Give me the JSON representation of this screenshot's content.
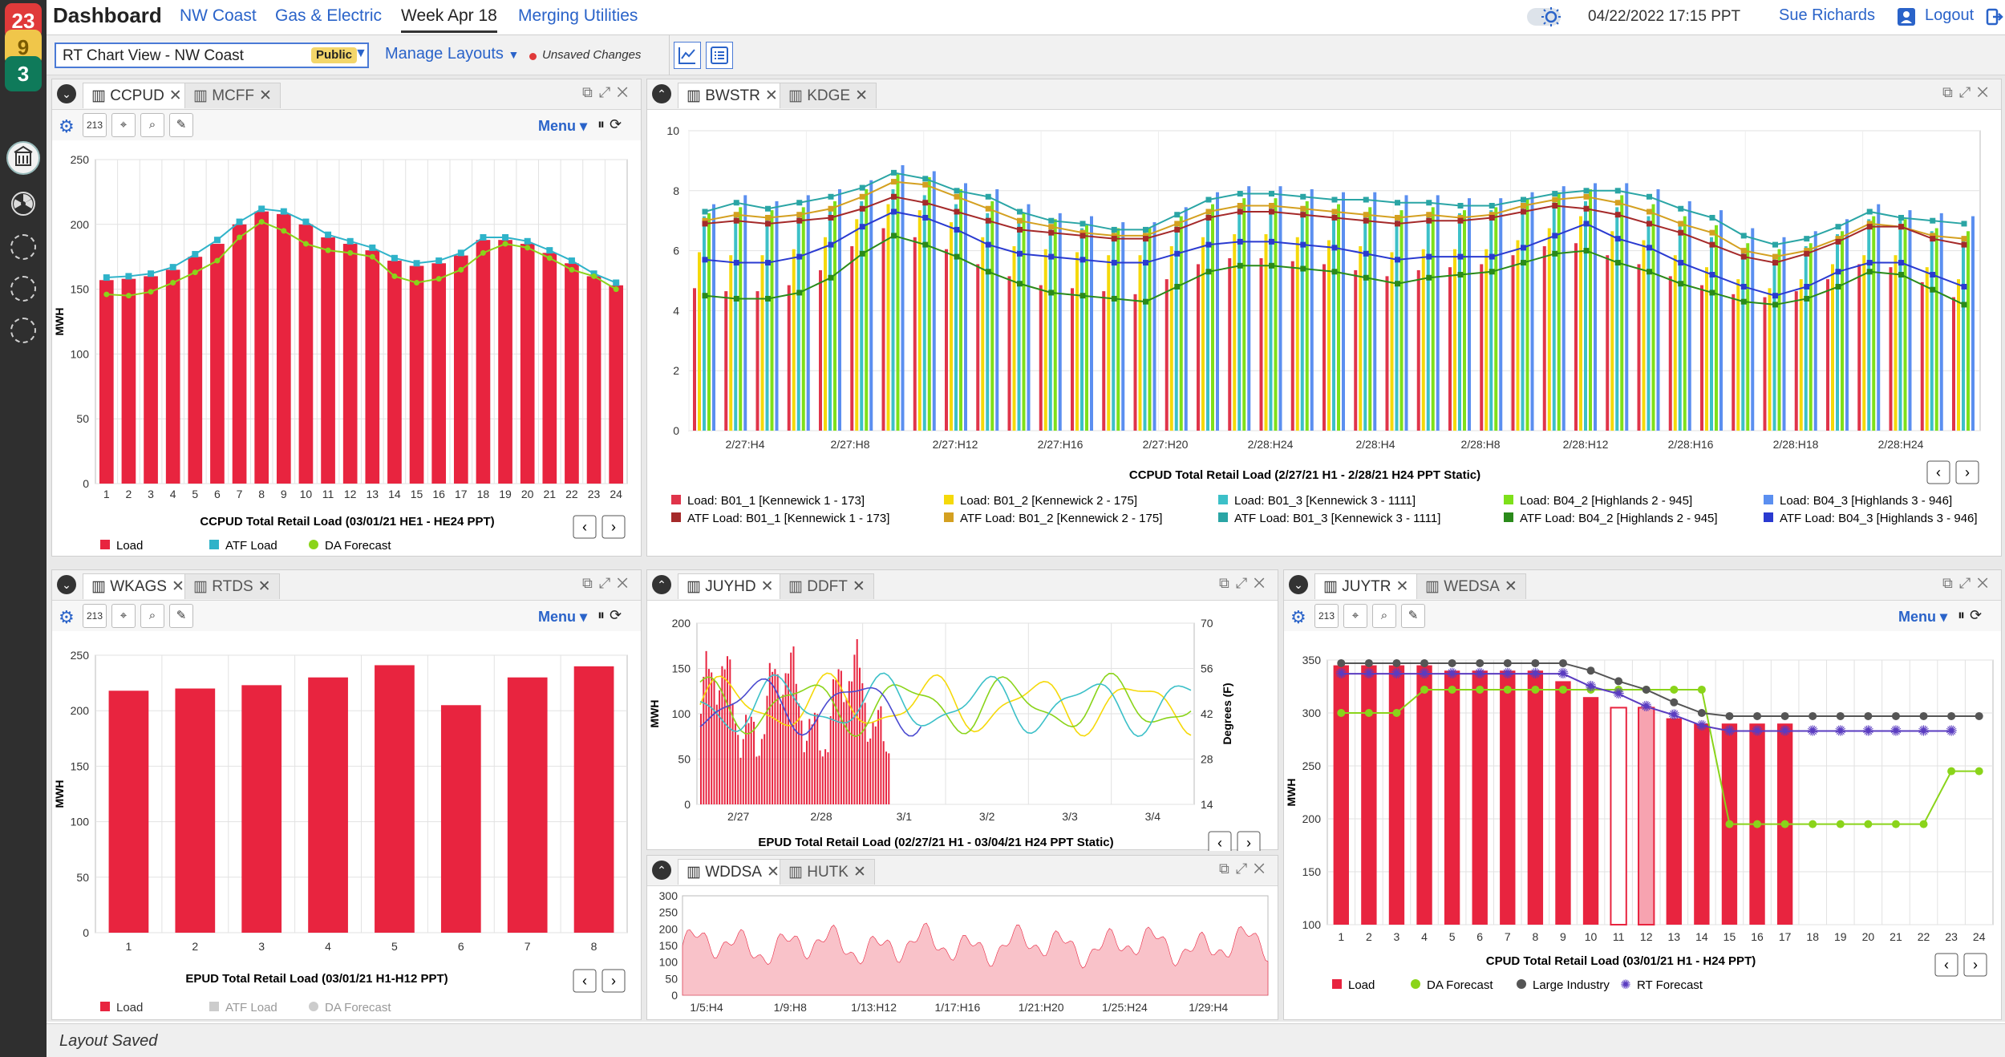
{
  "header": {
    "title": "Dashboard",
    "tabs": [
      "NW Coast",
      "Gas & Electric",
      "Week Apr 18",
      "Merging Utilities"
    ],
    "active_tab": 2,
    "datetime": "04/22/2022  17:15 PPT",
    "user": "Sue Richards",
    "logout": "Logout"
  },
  "rail": {
    "badges": [
      {
        "count": "23",
        "color": "#e03a3a"
      },
      {
        "count": "9",
        "color": "#f0c64a"
      },
      {
        "count": "3",
        "color": "#0f7a5a"
      }
    ]
  },
  "toolbar": {
    "view_name": "RT Chart View - NW Coast",
    "view_badge": "Public",
    "manage_layouts": "Manage Layouts",
    "unsaved": "Unsaved Changes"
  },
  "status": {
    "text": "Layout Saved"
  },
  "panels": {
    "p1": {
      "tabs": [
        "CCPUD",
        "MCFF"
      ],
      "counter": "213",
      "menu": "Menu",
      "title": "CCPUD Total Retail Load (03/01/21 HE1 - HE24  PPT)",
      "legend": [
        "Load",
        "ATF Load",
        "DA Forecast"
      ],
      "ylabel": "MWH"
    },
    "p2": {
      "tabs": [
        "BWSTR",
        "KDGE"
      ],
      "title": "CCPUD Total Retail Load  (2/27/21 H1 - 2/28/21 H24 PPT Static)",
      "legend": [
        "Load: B01_1 [Kennewick 1 - 173]",
        "Load: B01_2 [Kennewick 2 - 175]",
        "Load: B01_3 [Kennewick 3 - 1111]",
        "Load: B04_2 [Highlands 2 - 945]",
        "Load: B04_3 [Highlands 3 - 946]",
        "ATF Load: B01_1 [Kennewick 1 - 173]",
        "ATF Load: B01_2 [Kennewick 2 - 175]",
        "ATF Load: B01_3 [Kennewick 3 - 1111]",
        "ATF Load: B04_2 [Highlands 2 - 945]",
        "ATF Load: B04_3 [Highlands 3 - 946]"
      ],
      "legend_colors": [
        "#e0344a",
        "#f5d90a",
        "#3cc0c8",
        "#7ee01a",
        "#5b8ff0",
        "#a52a2a",
        "#d4a020",
        "#2aa5a5",
        "#2a8a1a",
        "#2a3ad0"
      ]
    },
    "p3": {
      "tabs": [
        "WKAGS",
        "RTDS"
      ],
      "counter": "213",
      "menu": "Menu",
      "title": "EPUD Total Retail Load  (03/01/21 H1-H12 PPT)",
      "legend": [
        "Load",
        "ATF Load",
        "DA Forecast"
      ],
      "ylabel": "MWH"
    },
    "p4": {
      "tabs": [
        "JUYHD",
        "DDFT"
      ],
      "title": "EPUD Total Retail Load  (02/27/21 H1 - 03/04/21 H24 PPT Static)",
      "ylabel": "MWH",
      "ylabel2": "Degrees (F)"
    },
    "p5": {
      "tabs": [
        "WDDSA",
        "HUTK"
      ]
    },
    "p6": {
      "tabs": [
        "JUYTR",
        "WEDSA"
      ],
      "counter": "213",
      "menu": "Menu",
      "title": "CPUD Total Retail Load (03/01/21 H1 - H24 PPT)",
      "legend": [
        "Load",
        "DA Forecast",
        "Large Industry",
        "RT Forecast"
      ],
      "ylabel": "MWH"
    }
  },
  "chart_data": [
    {
      "id": "ccpud",
      "type": "bar",
      "title": "CCPUD Total Retail Load (03/01/21 HE1 - HE24  PPT)",
      "ylabel": "MWH",
      "ylim": [
        0,
        250
      ],
      "categories": [
        "1",
        "2",
        "3",
        "4",
        "5",
        "6",
        "7",
        "8",
        "9",
        "10",
        "11",
        "12",
        "13",
        "14",
        "15",
        "16",
        "17",
        "18",
        "19",
        "20",
        "21",
        "22",
        "23",
        "24"
      ],
      "series": [
        {
          "name": "Load",
          "type": "bar",
          "color": "#e8243f",
          "values": [
            157,
            158,
            160,
            165,
            175,
            185,
            200,
            210,
            208,
            200,
            190,
            185,
            180,
            172,
            168,
            170,
            176,
            188,
            188,
            185,
            178,
            170,
            160,
            153
          ]
        },
        {
          "name": "ATF Load",
          "type": "line",
          "color": "#2fb3c9",
          "values": [
            159,
            160,
            162,
            167,
            177,
            188,
            202,
            212,
            210,
            202,
            192,
            187,
            182,
            174,
            170,
            172,
            178,
            190,
            190,
            187,
            180,
            172,
            162,
            155
          ]
        },
        {
          "name": "DA Forecast",
          "type": "line",
          "color": "#8ad41a",
          "values": [
            146,
            145,
            148,
            155,
            163,
            172,
            190,
            202,
            195,
            185,
            180,
            178,
            175,
            160,
            155,
            158,
            165,
            178,
            185,
            182,
            174,
            165,
            160,
            150
          ]
        }
      ]
    },
    {
      "id": "bwstr",
      "type": "bar",
      "title": "CCPUD Total Retail Load  (2/27/21 H1 - 2/28/21 H24 PPT Static)",
      "ylim": [
        0,
        10
      ],
      "x_ticks": [
        "2/27:H4",
        "2/27:H8",
        "2/27:H12",
        "2/27:H16",
        "2/27:H20",
        "2/28:H24",
        "2/28:H4",
        "2/28:H8",
        "2/28:H12",
        "2/28:H16",
        "2/28:H18",
        "2/28:H24"
      ],
      "series": [
        {
          "name": "ATF Load: B01_3 [Kennewick 3 - 1111]",
          "values": [
            7.3,
            7.6,
            7.4,
            7.6,
            7.8,
            8.1,
            8.6,
            8.4,
            8.0,
            7.8,
            7.3,
            7.0,
            6.9,
            6.7,
            6.7,
            7.2,
            7.7,
            7.9,
            7.9,
            7.8,
            7.7,
            7.7,
            7.6,
            7.6,
            7.5,
            7.5,
            7.7,
            7.9,
            8.0,
            8.0,
            7.8,
            7.4,
            7.1,
            6.5,
            6.2,
            6.4,
            6.8,
            7.3,
            7.1,
            7.0,
            6.9
          ]
        },
        {
          "name": "ATF Load: B01_2 [Kennewick 2 - 175]",
          "values": [
            7.0,
            7.2,
            7.1,
            7.2,
            7.4,
            7.8,
            8.3,
            8.2,
            7.8,
            7.4,
            7.0,
            6.8,
            6.6,
            6.5,
            6.5,
            6.9,
            7.3,
            7.5,
            7.5,
            7.4,
            7.3,
            7.2,
            7.1,
            7.2,
            7.1,
            7.2,
            7.5,
            7.7,
            7.8,
            7.6,
            7.3,
            6.9,
            6.6,
            6.0,
            5.8,
            6.0,
            6.4,
            6.9,
            6.8,
            6.5,
            6.4
          ]
        },
        {
          "name": "ATF Load: B01_1 [Kennewick 1 - 173]",
          "values": [
            6.9,
            7.0,
            6.9,
            7.0,
            7.1,
            7.4,
            7.8,
            7.6,
            7.3,
            7.0,
            6.7,
            6.6,
            6.5,
            6.4,
            6.4,
            6.7,
            7.1,
            7.3,
            7.3,
            7.2,
            7.1,
            7.0,
            6.9,
            7.0,
            7.0,
            7.1,
            7.3,
            7.5,
            7.4,
            7.2,
            6.9,
            6.6,
            6.2,
            5.8,
            5.6,
            5.9,
            6.3,
            6.8,
            6.8,
            6.4,
            6.2
          ]
        },
        {
          "name": "ATF Load: B04_3 [Highlands 3 - 946]",
          "values": [
            5.7,
            5.6,
            5.6,
            5.8,
            6.2,
            6.8,
            7.3,
            7.1,
            6.7,
            6.2,
            5.9,
            5.8,
            5.7,
            5.6,
            5.6,
            5.9,
            6.2,
            6.3,
            6.3,
            6.2,
            6.1,
            5.9,
            5.7,
            5.8,
            5.8,
            5.8,
            6.1,
            6.5,
            6.9,
            6.4,
            6.1,
            5.6,
            5.2,
            4.8,
            4.5,
            4.8,
            5.3,
            5.6,
            5.6,
            5.2,
            4.8
          ]
        },
        {
          "name": "ATF Load: B04_2 [Highlands 2 - 945]",
          "values": [
            4.5,
            4.4,
            4.4,
            4.6,
            5.1,
            5.9,
            6.5,
            6.2,
            5.8,
            5.3,
            4.9,
            4.6,
            4.5,
            4.4,
            4.3,
            4.8,
            5.3,
            5.5,
            5.5,
            5.4,
            5.3,
            5.1,
            4.9,
            5.1,
            5.2,
            5.3,
            5.6,
            5.9,
            6.0,
            5.6,
            5.3,
            4.9,
            4.6,
            4.3,
            4.2,
            4.4,
            4.8,
            5.3,
            5.2,
            4.7,
            4.2
          ]
        }
      ]
    },
    {
      "id": "epud12",
      "type": "bar",
      "title": "EPUD Total Retail Load  (03/01/21 H1-H12 PPT)",
      "ylabel": "MWH",
      "ylim": [
        0,
        250
      ],
      "categories": [
        "1",
        "2",
        "3",
        "4",
        "5",
        "6",
        "7",
        "8"
      ],
      "series": [
        {
          "name": "Load",
          "values": [
            218,
            220,
            223,
            230,
            241,
            205,
            230,
            240
          ]
        }
      ]
    },
    {
      "id": "epud_static",
      "type": "bar",
      "title": "EPUD Total Retail Load  (02/27/21 H1 - 03/04/21 H24 PPT Static)",
      "ylabel": "MWH",
      "ylabel_right": "Degrees (F)",
      "ylim": [
        0,
        200
      ],
      "ylim_right": [
        14,
        70
      ],
      "x_ticks": [
        "2/27",
        "2/28",
        "3/1",
        "3/2",
        "3/3",
        "3/4"
      ]
    },
    {
      "id": "wddsa",
      "type": "area",
      "ylim": [
        0,
        300
      ],
      "y_ticks": [
        0,
        50,
        100,
        150,
        200,
        250,
        300
      ],
      "x_ticks": [
        "1/5:H4",
        "1/9:H8",
        "1/13:H12",
        "1/17:H16",
        "1/21:H20",
        "1/25:H24",
        "1/29:H4"
      ]
    },
    {
      "id": "cpud",
      "type": "bar",
      "title": "CPUD Total Retail Load (03/01/21 H1 - H24 PPT)",
      "ylabel": "MWH",
      "ylim": [
        100,
        350
      ],
      "categories": [
        "1",
        "2",
        "3",
        "4",
        "5",
        "6",
        "7",
        "8",
        "9",
        "10",
        "11",
        "12",
        "13",
        "14",
        "15",
        "16",
        "17",
        "18",
        "19",
        "20",
        "21",
        "22",
        "23",
        "24"
      ],
      "series": [
        {
          "name": "Load",
          "type": "bar",
          "values": [
            345,
            345,
            345,
            345,
            340,
            340,
            340,
            340,
            330,
            315,
            305,
            305,
            295,
            290,
            290,
            290,
            290,
            null,
            null,
            null,
            null,
            null,
            null,
            null
          ]
        },
        {
          "name": "DA Forecast",
          "type": "line",
          "color": "#8ad41a",
          "values": [
            300,
            300,
            300,
            322,
            322,
            322,
            322,
            322,
            322,
            322,
            322,
            322,
            322,
            322,
            195,
            195,
            195,
            195,
            195,
            195,
            195,
            195,
            245,
            245
          ]
        },
        {
          "name": "Large Industry",
          "type": "line",
          "color": "#555555",
          "values": [
            347,
            347,
            347,
            347,
            347,
            347,
            347,
            347,
            347,
            340,
            330,
            322,
            310,
            300,
            297,
            297,
            297,
            297,
            297,
            297,
            297,
            297,
            297,
            297
          ]
        },
        {
          "name": "RT Forecast",
          "type": "line",
          "color": "#5a3cc0",
          "values": [
            337,
            337,
            337,
            337,
            337,
            337,
            337,
            337,
            337,
            325,
            318,
            306,
            298,
            288,
            283,
            283,
            283,
            283,
            283,
            283,
            283,
            283,
            283,
            null
          ]
        }
      ]
    }
  ]
}
